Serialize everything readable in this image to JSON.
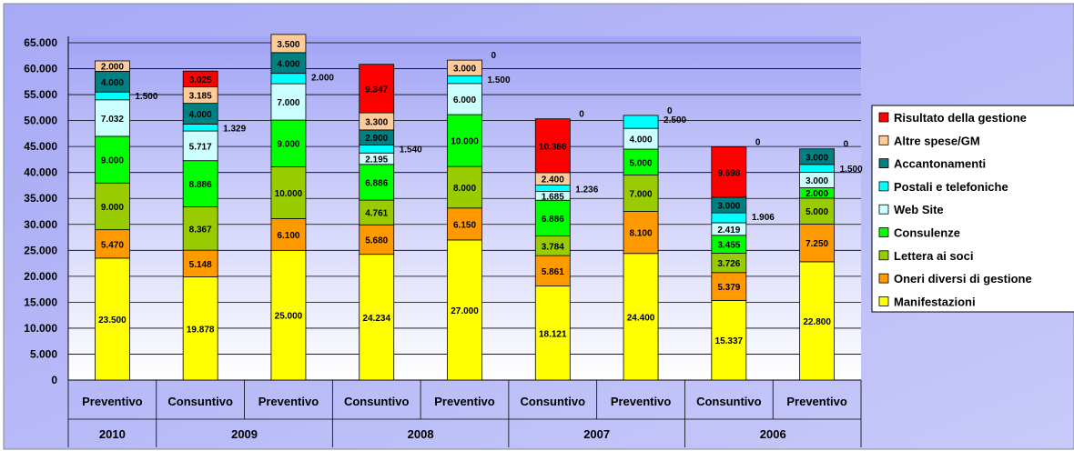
{
  "colors": {
    "frame_bg": "#a7a9f5",
    "plot_bg_top": "#a2a4f6",
    "plot_bg_bottom": "#ffffff",
    "grid": "#000000"
  },
  "chart_data": {
    "type": "bar",
    "stacked": true,
    "title": "",
    "xlabel": "",
    "ylabel": "",
    "ylim": [
      0,
      65000
    ],
    "yticks": [
      0,
      5000,
      10000,
      15000,
      20000,
      25000,
      30000,
      35000,
      40000,
      45000,
      50000,
      55000,
      60000,
      65000
    ],
    "ytick_labels": [
      "0",
      "5.000",
      "10.000",
      "15.000",
      "20.000",
      "25.000",
      "30.000",
      "35.000",
      "40.000",
      "45.000",
      "50.000",
      "55.000",
      "60.000",
      "65.000"
    ],
    "grid": true,
    "legend_position": "right",
    "categories": [
      "Preventivo",
      "Consuntivo",
      "Preventivo",
      "Consuntivo",
      "Preventivo",
      "Consuntivo",
      "Preventivo",
      "Consuntivo",
      "Preventivo"
    ],
    "year_groups": [
      {
        "label": "2010",
        "span": 1
      },
      {
        "label": "2009",
        "span": 2
      },
      {
        "label": "2008",
        "span": 2
      },
      {
        "label": "2007",
        "span": 2
      },
      {
        "label": "2006",
        "span": 2
      }
    ],
    "series": [
      {
        "name": "Manifestazioni",
        "color": "#ffff00",
        "values": [
          23500,
          19878,
          25000,
          24234,
          27000,
          18121,
          24400,
          15337,
          22800
        ],
        "labels": [
          "23.500",
          "19.878",
          "25.000",
          "24.234",
          "27.000",
          "18.121",
          "24.400",
          "15.337",
          "22.800"
        ]
      },
      {
        "name": "Oneri diversi di gestione",
        "color": "#ff9900",
        "values": [
          5470,
          5148,
          6100,
          5680,
          6150,
          5861,
          8100,
          5379,
          7250
        ],
        "labels": [
          "5.470",
          "5.148",
          "6.100",
          "5.680",
          "6.150",
          "5.861",
          "8.100",
          "5.379",
          "7.250"
        ]
      },
      {
        "name": "Lettera ai soci",
        "color": "#99cc00",
        "values": [
          9000,
          8367,
          10000,
          4761,
          8000,
          3784,
          7000,
          3726,
          5000
        ],
        "labels": [
          "9.000",
          "8.367",
          "10.000",
          "4.761",
          "8.000",
          "3.784",
          "7.000",
          "3.726",
          "5.000"
        ]
      },
      {
        "name": "Consulenze",
        "color": "#00ff00",
        "values": [
          9000,
          8886,
          9000,
          6886,
          10000,
          6886,
          5000,
          3455,
          2000
        ],
        "labels": [
          "9.000",
          "8.886",
          "9.000",
          "6.886",
          "10.000",
          "6.886",
          "5.000",
          "3.455",
          "2.000"
        ]
      },
      {
        "name": "Web Site",
        "color": "#ccffff",
        "values": [
          7032,
          5717,
          7000,
          2195,
          6000,
          1685,
          4000,
          2419,
          3000
        ],
        "labels": [
          "7.032",
          "5.717",
          "7.000",
          "2.195",
          "6.000",
          "1.685",
          "4.000",
          "2.419",
          "3.000"
        ]
      },
      {
        "name": "Postali e telefoniche",
        "color": "#00ffff",
        "values": [
          1500,
          1329,
          2000,
          1540,
          1500,
          1236,
          2500,
          1906,
          1500
        ],
        "labels": [
          "1.500",
          "1.329",
          "2.000",
          "1.540",
          "1.500",
          "1.236",
          "2.500",
          "1.906",
          "1.500"
        ]
      },
      {
        "name": "Accantonamenti",
        "color": "#008080",
        "values": [
          4000,
          4000,
          4000,
          2900,
          0,
          0,
          0,
          3000,
          3000
        ],
        "labels": [
          "4.000",
          "4.000",
          "4.000",
          "2.900",
          "0",
          "0",
          "0",
          "3.000",
          "3.000"
        ]
      },
      {
        "name": "Altre spese/GM",
        "color": "#ffcc99",
        "values": [
          2000,
          3185,
          3500,
          3300,
          3000,
          2400,
          0,
          0,
          0
        ],
        "labels": [
          "2.000",
          "3.185",
          "3.500",
          "3.300",
          "3.000",
          "2.400",
          "",
          "0",
          "0"
        ]
      },
      {
        "name": "Risultato della gestione",
        "color": "#ff0000",
        "values": [
          0,
          3025,
          0,
          9347,
          0,
          10366,
          0,
          9698,
          0
        ],
        "labels": [
          "",
          "3.025",
          "",
          "9.347",
          "",
          "10.366",
          "",
          "9.698",
          ""
        ]
      }
    ]
  }
}
